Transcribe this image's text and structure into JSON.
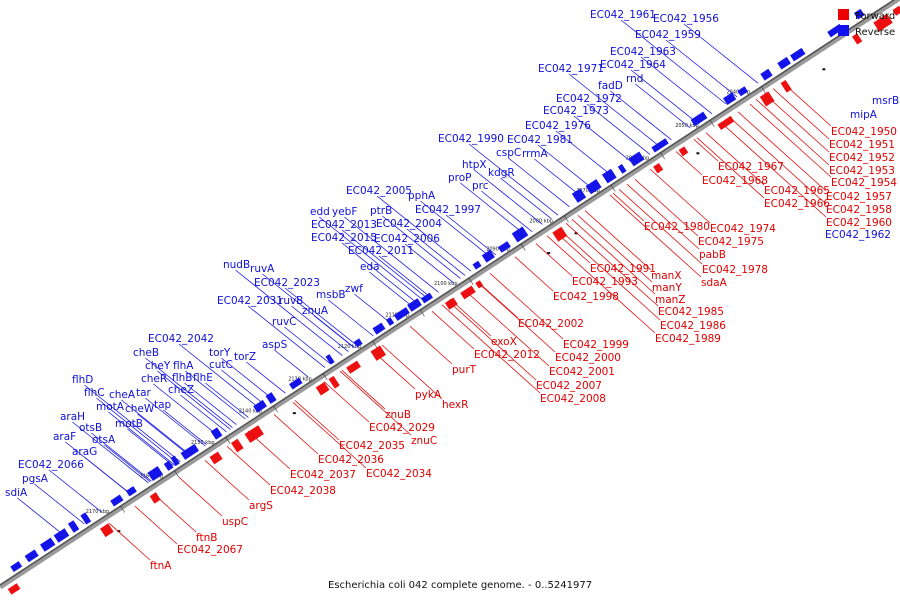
{
  "caption": "Escherichia coli 042 complete genome. - 0..5241977",
  "legend": [
    {
      "label": "Forward",
      "color": "#ee0000"
    },
    {
      "label": "Reverse",
      "color": "#1111ee"
    }
  ],
  "ticks": [
    "2040 kbp",
    "2050 kbp",
    "2060 kbp",
    "2070 kbp",
    "2080 kbp",
    "2090 kbp",
    "2100 kbp",
    "2110 kbp",
    "2120 kbp",
    "2130 kbp",
    "2140 kbp",
    "2150 kbp",
    "2160 kbp",
    "2170 kbp"
  ],
  "reverse_labels": [
    {
      "text": "EC042_1961"
    },
    {
      "text": "EC042_1956"
    },
    {
      "text": "EC042_1959"
    },
    {
      "text": "EC042_1963"
    },
    {
      "text": "EC042_1964"
    },
    {
      "text": "EC042_1971"
    },
    {
      "text": "rnd"
    },
    {
      "text": "fadD"
    },
    {
      "text": "EC042_1972"
    },
    {
      "text": "EC042_1973"
    },
    {
      "text": "EC042_1976"
    },
    {
      "text": "EC042_1990"
    },
    {
      "text": "EC042_1981"
    },
    {
      "text": "cspC"
    },
    {
      "text": "rrmA"
    },
    {
      "text": "htpX"
    },
    {
      "text": "kdgR"
    },
    {
      "text": "proP"
    },
    {
      "text": "prc"
    },
    {
      "text": "EC042_2005"
    },
    {
      "text": "pphA"
    },
    {
      "text": "EC042_1997"
    },
    {
      "text": "edd"
    },
    {
      "text": "yebF"
    },
    {
      "text": "ptrB"
    },
    {
      "text": "EC042_2013"
    },
    {
      "text": "EC042_2004"
    },
    {
      "text": "EC042_2015"
    },
    {
      "text": "EC042_2006"
    },
    {
      "text": "EC042_2011"
    },
    {
      "text": "eda"
    },
    {
      "text": "nudB"
    },
    {
      "text": "ruvA"
    },
    {
      "text": "EC042_2023"
    },
    {
      "text": "zwf"
    },
    {
      "text": "msbB"
    },
    {
      "text": "EC042_2031"
    },
    {
      "text": "ruvB"
    },
    {
      "text": "znuA"
    },
    {
      "text": "ruvC"
    },
    {
      "text": "aspS"
    },
    {
      "text": "EC042_2042"
    },
    {
      "text": "cheB"
    },
    {
      "text": "torY"
    },
    {
      "text": "torZ"
    },
    {
      "text": "cheY"
    },
    {
      "text": "flhA"
    },
    {
      "text": "cutC"
    },
    {
      "text": "cheR"
    },
    {
      "text": "flhB"
    },
    {
      "text": "flhE"
    },
    {
      "text": "flhD"
    },
    {
      "text": "tar"
    },
    {
      "text": "cheZ"
    },
    {
      "text": "flhC"
    },
    {
      "text": "cheA"
    },
    {
      "text": "motA"
    },
    {
      "text": "tap"
    },
    {
      "text": "cheW"
    },
    {
      "text": "araH"
    },
    {
      "text": "motB"
    },
    {
      "text": "otsB"
    },
    {
      "text": "araF"
    },
    {
      "text": "otsA"
    },
    {
      "text": "araG"
    },
    {
      "text": "EC042_2066"
    },
    {
      "text": "pgsA"
    },
    {
      "text": "sdiA"
    },
    {
      "text": "msrB"
    },
    {
      "text": "mipA"
    },
    {
      "text": "EC042_1962"
    }
  ],
  "forward_labels": [
    {
      "text": "EC042_1950"
    },
    {
      "text": "EC042_1951"
    },
    {
      "text": "EC042_1952"
    },
    {
      "text": "EC042_1953"
    },
    {
      "text": "EC042_1954"
    },
    {
      "text": "EC042_1967"
    },
    {
      "text": "EC042_1968"
    },
    {
      "text": "EC042_1957"
    },
    {
      "text": "EC042_1965"
    },
    {
      "text": "EC042_1958"
    },
    {
      "text": "EC042_1966"
    },
    {
      "text": "EC042_1960"
    },
    {
      "text": "EC042_1980"
    },
    {
      "text": "EC042_1974"
    },
    {
      "text": "EC042_1975"
    },
    {
      "text": "pabB"
    },
    {
      "text": "EC042_1978"
    },
    {
      "text": "sdaA"
    },
    {
      "text": "EC042_1991"
    },
    {
      "text": "manX"
    },
    {
      "text": "EC042_1993"
    },
    {
      "text": "manY"
    },
    {
      "text": "EC042_1998"
    },
    {
      "text": "manZ"
    },
    {
      "text": "EC042_1985"
    },
    {
      "text": "EC042_2002"
    },
    {
      "text": "EC042_1986"
    },
    {
      "text": "EC042_1989"
    },
    {
      "text": "exoX"
    },
    {
      "text": "EC042_1999"
    },
    {
      "text": "EC042_2012"
    },
    {
      "text": "EC042_2000"
    },
    {
      "text": "purT"
    },
    {
      "text": "EC042_2001"
    },
    {
      "text": "EC042_2007"
    },
    {
      "text": "pykA"
    },
    {
      "text": "hexR"
    },
    {
      "text": "EC042_2008"
    },
    {
      "text": "znuB"
    },
    {
      "text": "EC042_2029"
    },
    {
      "text": "znuC"
    },
    {
      "text": "EC042_2035"
    },
    {
      "text": "EC042_2036"
    },
    {
      "text": "EC042_2034"
    },
    {
      "text": "EC042_2037"
    },
    {
      "text": "EC042_2038"
    },
    {
      "text": "argS"
    },
    {
      "text": "uspC"
    },
    {
      "text": "ftnB"
    },
    {
      "text": "EC042_2067"
    },
    {
      "text": "ftnA"
    }
  ]
}
